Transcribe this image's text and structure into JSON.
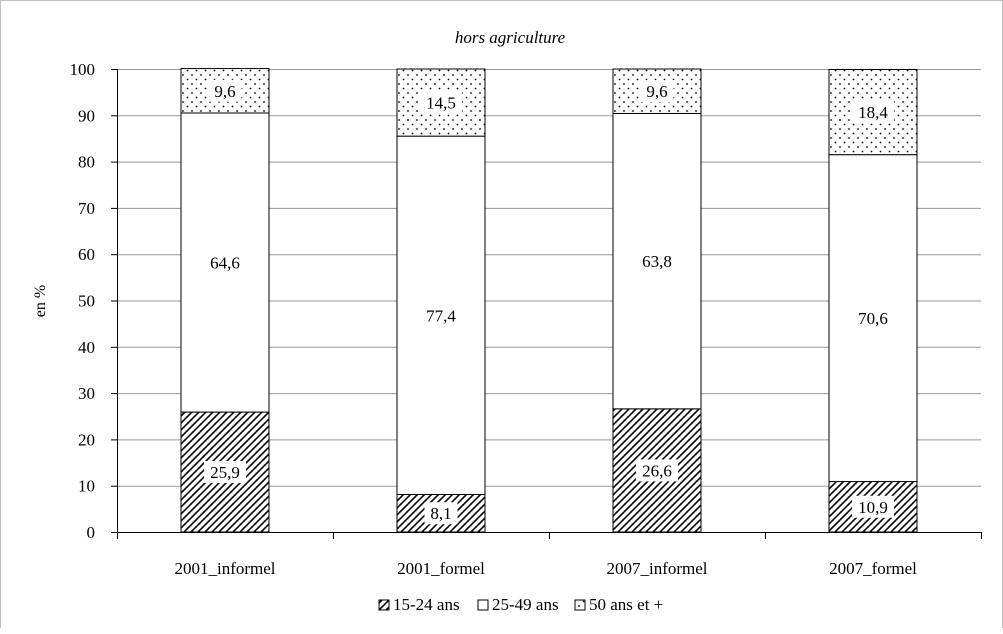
{
  "chart_data": {
    "type": "bar",
    "stacked": true,
    "title": "hors agriculture",
    "xlabel": "",
    "ylabel": "en %",
    "ylim": [
      0,
      100
    ],
    "yticks": [
      0,
      10,
      20,
      30,
      40,
      50,
      60,
      70,
      80,
      90,
      100
    ],
    "grid": true,
    "legend_position": "bottom",
    "categories": [
      "2001_informel",
      "2001_formel",
      "2007_informel",
      "2007_formel"
    ],
    "series": [
      {
        "name": "15-24 ans",
        "pattern": "diagonal-hatch",
        "values": [
          25.9,
          8.1,
          26.6,
          10.9
        ],
        "labels": [
          "25,9",
          "8,1",
          "26,6",
          "10,9"
        ]
      },
      {
        "name": "25-49 ans",
        "pattern": "plain",
        "values": [
          64.6,
          77.4,
          63.8,
          70.6
        ],
        "labels": [
          "64,6",
          "77,4",
          "63,8",
          "70,6"
        ]
      },
      {
        "name": "50 ans et +",
        "pattern": "dots",
        "values": [
          9.6,
          14.5,
          9.6,
          18.4
        ],
        "labels": [
          "9,6",
          "14,5",
          "9,6",
          "18,4"
        ]
      }
    ],
    "colors": {
      "gridline": "#999999",
      "bar_stroke": "#000000",
      "hatch": "#000000",
      "fill": "#ffffff"
    }
  }
}
